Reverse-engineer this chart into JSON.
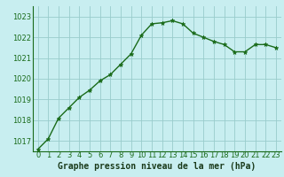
{
  "x": [
    0,
    1,
    2,
    3,
    4,
    5,
    6,
    7,
    8,
    9,
    10,
    11,
    12,
    13,
    14,
    15,
    16,
    17,
    18,
    19,
    20,
    21,
    22,
    23
  ],
  "y": [
    1016.6,
    1017.1,
    1018.1,
    1018.6,
    1019.1,
    1019.45,
    1019.9,
    1020.2,
    1020.7,
    1021.2,
    1022.1,
    1022.65,
    1022.7,
    1022.8,
    1022.65,
    1022.2,
    1022.0,
    1021.8,
    1021.65,
    1021.3,
    1021.3,
    1021.65,
    1021.65,
    1021.5
  ],
  "line_color": "#1a6b1a",
  "marker": "*",
  "marker_size": 3.5,
  "background_color": "#c8eef0",
  "grid_color": "#99cccc",
  "xlabel": "Graphe pression niveau de la mer (hPa)",
  "xlabel_color": "#1a3a1a",
  "ylim_min": 1016.5,
  "ylim_max": 1023.5,
  "yticks": [
    1017,
    1018,
    1019,
    1020,
    1021,
    1022,
    1023
  ],
  "xticks": [
    0,
    1,
    2,
    3,
    4,
    5,
    6,
    7,
    8,
    9,
    10,
    11,
    12,
    13,
    14,
    15,
    16,
    17,
    18,
    19,
    20,
    21,
    22,
    23
  ],
  "xtick_labels": [
    "0",
    "1",
    "2",
    "3",
    "4",
    "5",
    "6",
    "7",
    "8",
    "9",
    "10",
    "11",
    "12",
    "13",
    "14",
    "15",
    "16",
    "17",
    "18",
    "19",
    "20",
    "21",
    "22",
    "23"
  ],
  "line_width": 1.0,
  "tick_fontsize": 6,
  "xlabel_fontsize": 7
}
